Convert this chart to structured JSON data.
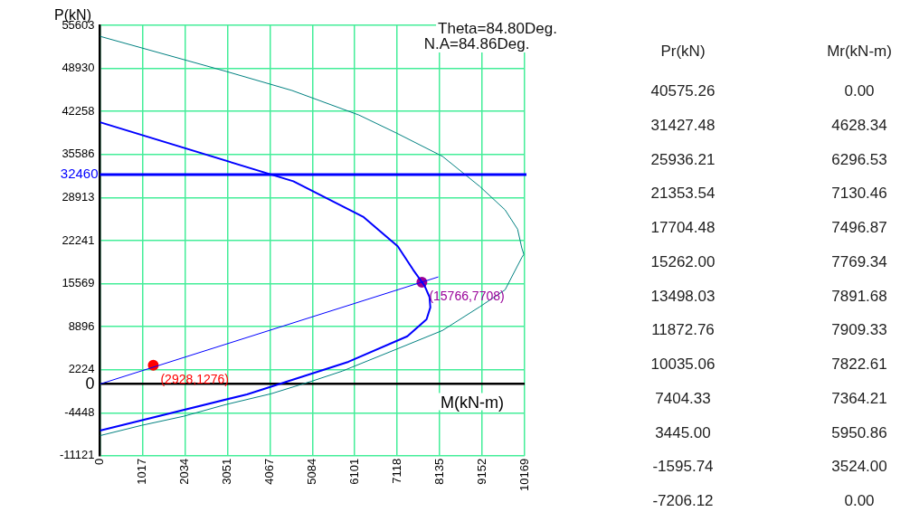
{
  "chart_data": {
    "type": "line",
    "xlabel": "M(kN-m)",
    "ylabel": "P(kN)",
    "annotations": [
      "Theta=84.80Deg.",
      "N.A=84.86Deg.",
      "Pr(kN)",
      "Mr(kN-m)",
      "40575.26",
      "0.00",
      "31427.48",
      "4628.34",
      "25936.21",
      "6296.53",
      "21353.54",
      "7130.46",
      "17704.48",
      "7496.87",
      "15262.00",
      "7769.34",
      "13498.03",
      "7891.68",
      "11872.76",
      "7909.33",
      "10035.06",
      "7822.61",
      "7404.33",
      "7364.21",
      "3445.00",
      "5950.86",
      "-1595.74",
      "3524.00",
      "-7206.12",
      "0.00"
    ],
    "xlim": [
      0,
      10169
    ],
    "ylim": [
      -11121,
      55603
    ],
    "xticks": [
      0,
      1017,
      2034,
      3051,
      4067,
      5084,
      6101,
      7118,
      8135,
      9152,
      10169
    ],
    "yticks": [
      -11121,
      -4448,
      0,
      2224,
      8896,
      15569,
      22241,
      28913,
      35586,
      42258,
      48930,
      55603
    ],
    "grid": true,
    "legend": false,
    "marker": "none",
    "ref_lines": [
      {
        "axis": "y",
        "value": 32460,
        "label": "32460",
        "color": "#0000ff"
      }
    ],
    "series": [
      {
        "color": "#008080",
        "x": [
          0,
          3000,
          4600,
          6200,
          7100,
          8200,
          9100,
          9700,
          10000,
          10100,
          10150,
          10100,
          9700,
          9100,
          8200,
          7100,
          5800,
          5100,
          4100,
          3000,
          2000,
          1000,
          0
        ],
        "values": [
          53900,
          48500,
          45500,
          41700,
          38900,
          35300,
          30600,
          27000,
          24000,
          21100,
          20100,
          19600,
          14600,
          12000,
          8300,
          5400,
          2000,
          500,
          -1500,
          -3200,
          -5000,
          -6400,
          -8000
        ]
      },
      {
        "color": "#0000ff",
        "x": [
          0,
          4630,
          6300,
          7130,
          7500,
          7770,
          7890,
          7910,
          7820,
          7360,
          5950,
          3520,
          0
        ],
        "values": [
          40580,
          31430,
          25940,
          21350,
          17700,
          15260,
          13500,
          11870,
          10040,
          7400,
          3450,
          -1600,
          -7210
        ]
      },
      {
        "color": "#0000ff",
        "x": [
          0,
          8100
        ],
        "values": [
          0,
          16600
        ]
      },
      {
        "type": "scatter",
        "color": "#ff0000",
        "marker": "circle",
        "x": [
          1276
        ],
        "values": [
          2928
        ],
        "value_labels": [
          "(2928,1276)"
        ]
      },
      {
        "type": "scatter",
        "color": "#990099",
        "marker": "circle",
        "x": [
          7708
        ],
        "values": [
          15766
        ],
        "value_labels": [
          "(15766,7708)"
        ]
      }
    ]
  }
}
